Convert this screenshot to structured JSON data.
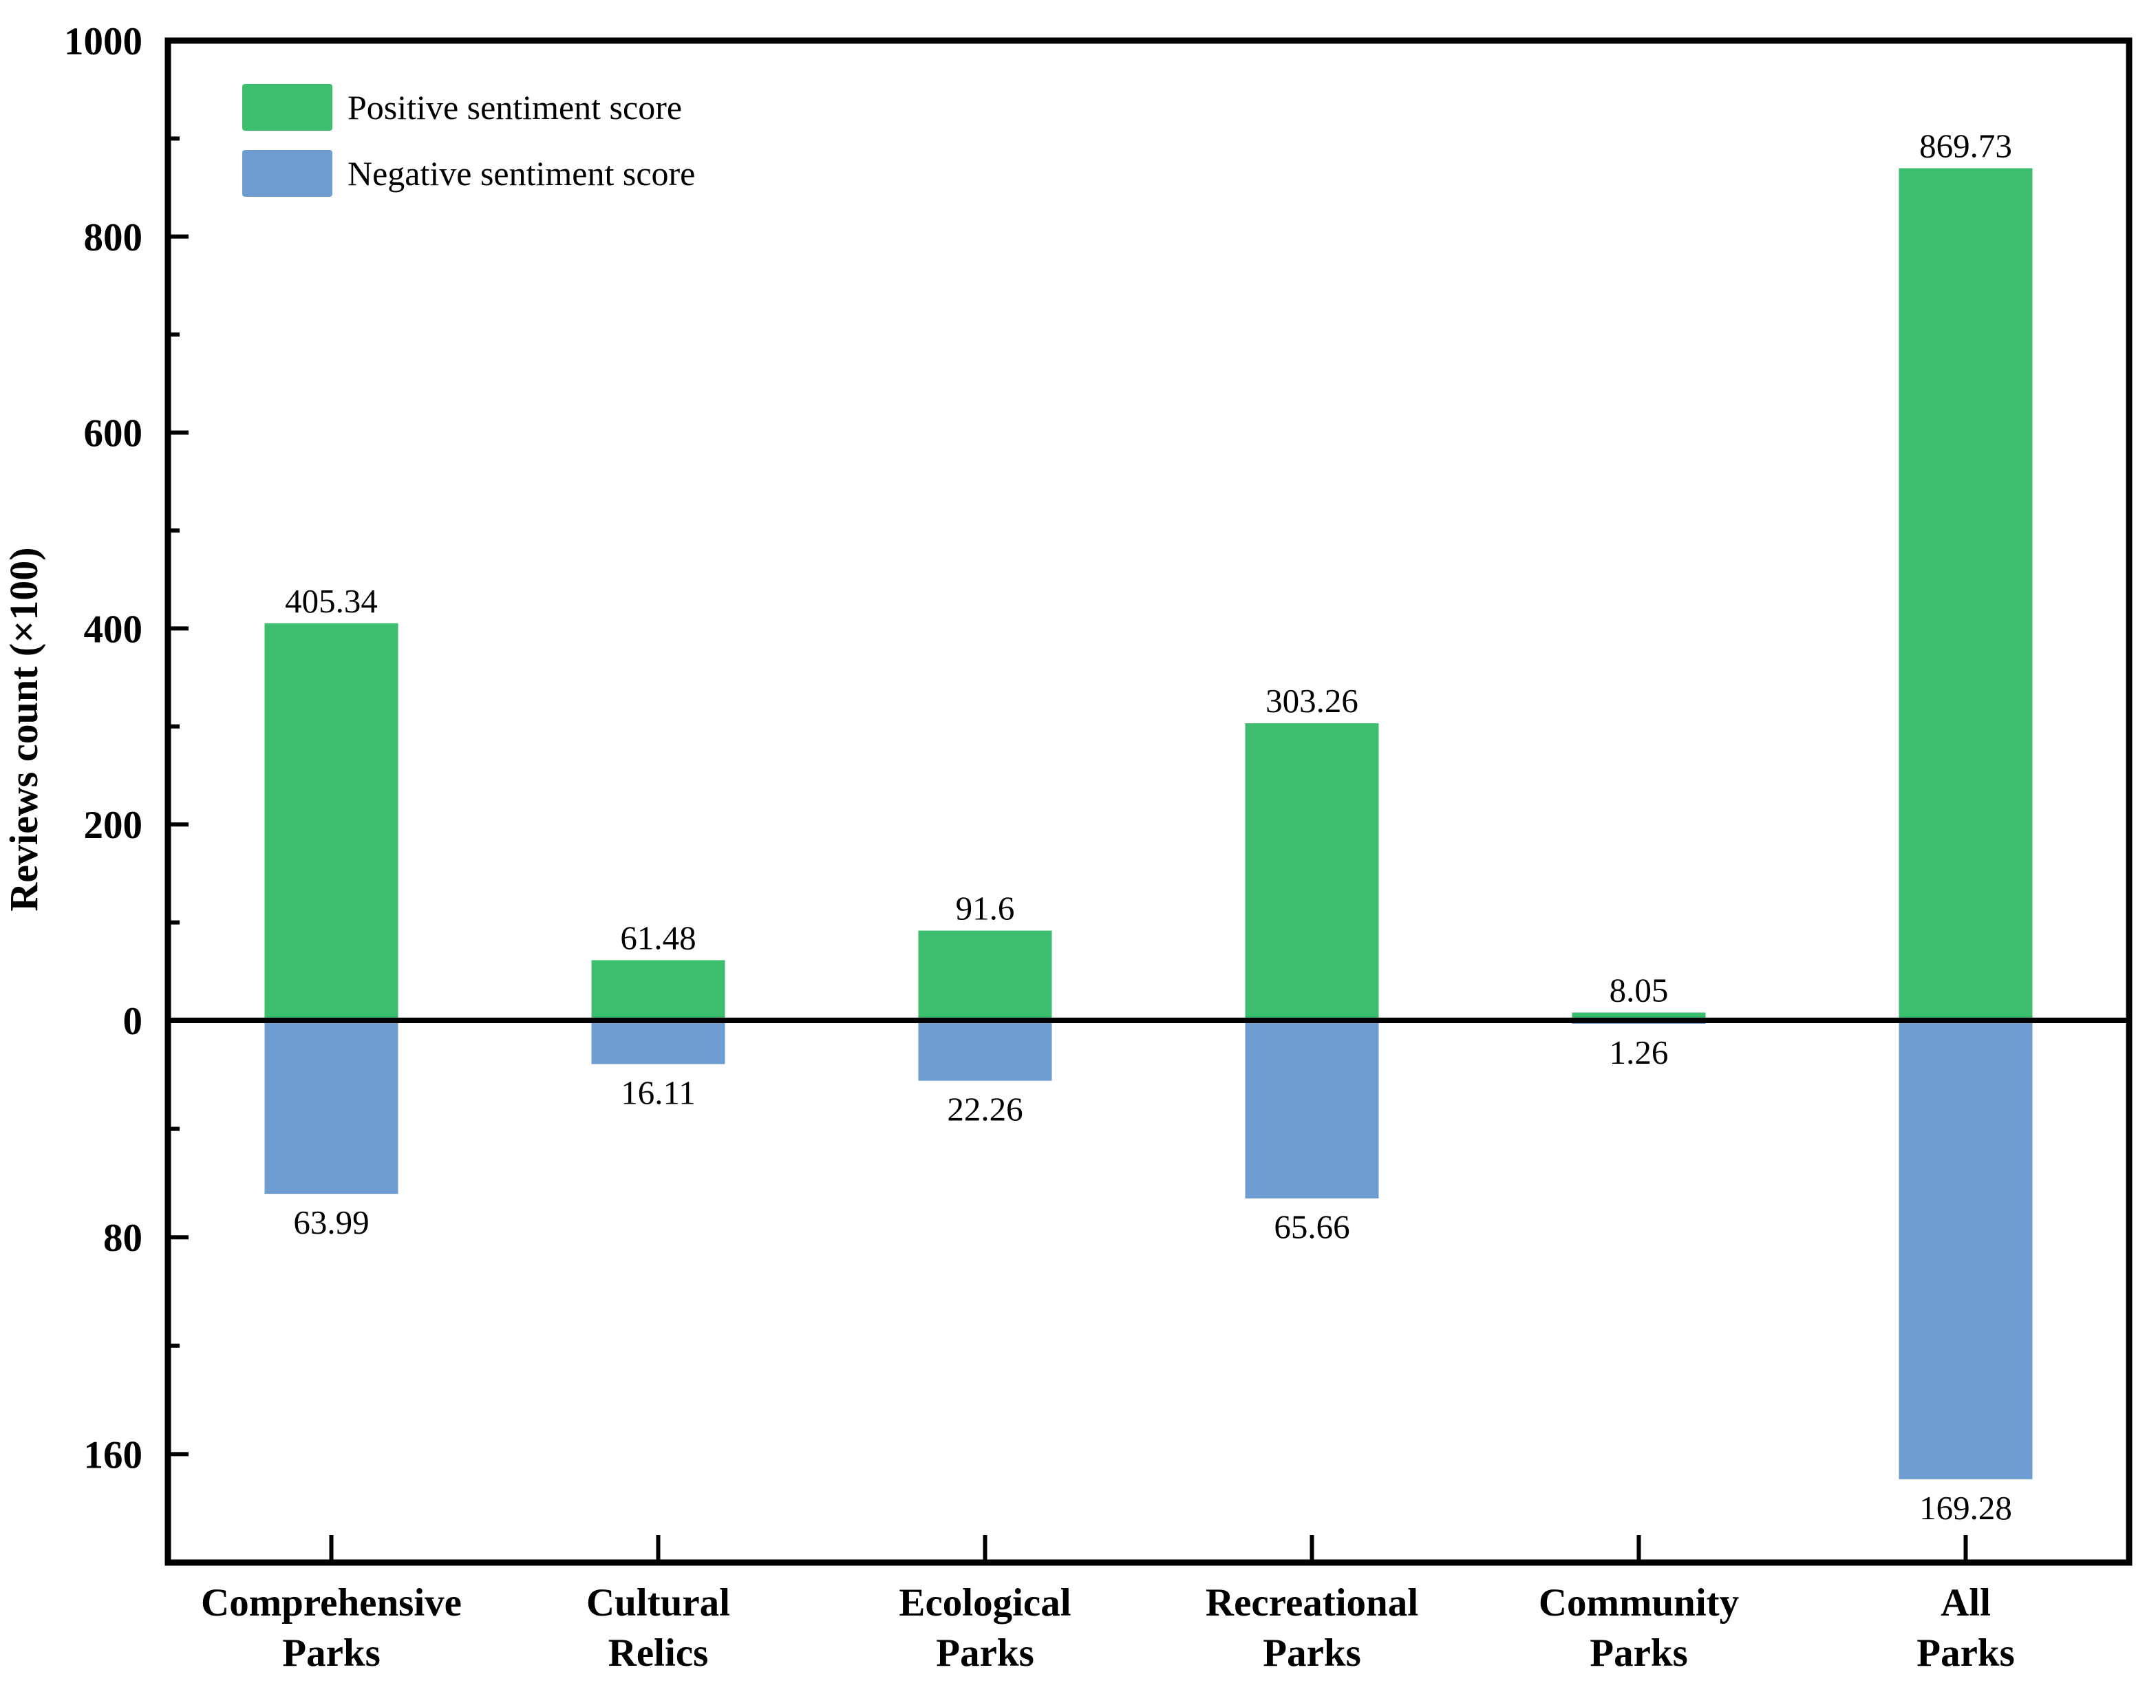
{
  "figure": {
    "background": "#ffffff",
    "axis_color": "#000000",
    "text_color": "#000000"
  },
  "chart_data": {
    "type": "bar",
    "title": "",
    "xlabel": "",
    "ylabel": "Reviews count (×100)",
    "grid": false,
    "legend": {
      "position": "top-left",
      "entries": [
        {
          "label": "Positive sentiment score",
          "color": "#3DBE6E"
        },
        {
          "label": "Negative sentiment score",
          "color": "#6D9DD1"
        }
      ]
    },
    "categories": [
      {
        "slug": "comprehensive-parks",
        "lines": [
          "Comprehensive",
          "Parks"
        ]
      },
      {
        "slug": "cultural-relics",
        "lines": [
          "Cultural",
          "Relics"
        ]
      },
      {
        "slug": "ecological-parks",
        "lines": [
          "Ecological",
          "Parks"
        ]
      },
      {
        "slug": "recreational-parks",
        "lines": [
          "Recreational",
          "Parks"
        ]
      },
      {
        "slug": "community-parks",
        "lines": [
          "Community",
          "Parks"
        ]
      },
      {
        "slug": "all-parks",
        "lines": [
          "All",
          "Parks"
        ]
      }
    ],
    "series": [
      {
        "name": "Positive sentiment score",
        "direction": "up",
        "color": "#3DBE6E",
        "values": [
          405.34,
          61.48,
          91.6,
          303.26,
          8.05,
          869.73
        ],
        "labels": [
          "405.34",
          "61.48",
          "91.6",
          "303.26",
          "8.05",
          "869.73"
        ]
      },
      {
        "name": "Negative sentiment score",
        "direction": "down",
        "color": "#6D9DD1",
        "values": [
          63.99,
          16.11,
          22.26,
          65.66,
          1.26,
          169.28
        ],
        "labels": [
          "63.99",
          "16.11",
          "22.26",
          "65.66",
          "1.26",
          "169.28"
        ]
      }
    ],
    "y_axis": {
      "positive": {
        "range": [
          0,
          1000
        ],
        "major_tick_labels": [
          "0",
          "200",
          "400",
          "600",
          "800",
          "1000"
        ],
        "major_tick_values": [
          0,
          200,
          400,
          600,
          800,
          1000
        ],
        "minor_tick_values": [
          100,
          300,
          500,
          700,
          900
        ]
      },
      "negative": {
        "range": [
          0,
          200
        ],
        "major_tick_labels": [
          "80",
          "160"
        ],
        "major_tick_values": [
          80,
          160
        ],
        "minor_tick_values": [
          40,
          120
        ]
      }
    }
  }
}
